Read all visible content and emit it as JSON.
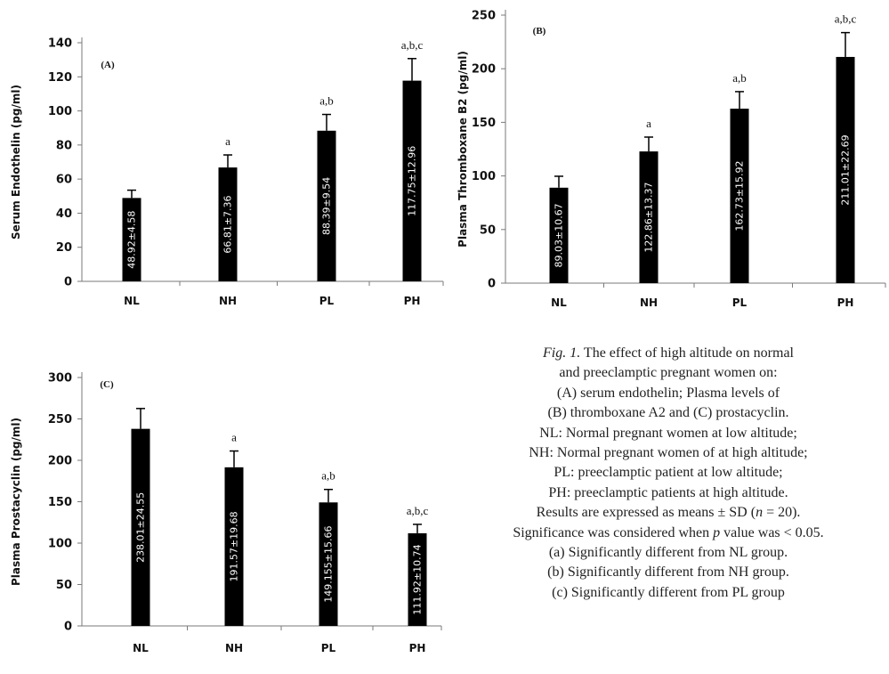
{
  "chart_data": [
    {
      "type": "bar",
      "panel_label": "(A)",
      "ylabel": "Serum Endothelin (pg/ml)",
      "ylim": [
        0,
        140
      ],
      "yticks": [
        0,
        20,
        40,
        60,
        80,
        100,
        120,
        140
      ],
      "categories": [
        "NL",
        "NH",
        "PL",
        "PH"
      ],
      "values": [
        48.92,
        66.81,
        88.39,
        117.75
      ],
      "errors": [
        4.58,
        7.36,
        9.54,
        12.96
      ],
      "value_labels": [
        "48.92±4.58",
        "66.81±7.36",
        "88.39±9.54",
        "117.75±12.96"
      ],
      "significance": [
        "",
        "a",
        "a,b",
        "a,b,c"
      ]
    },
    {
      "type": "bar",
      "panel_label": "(B)",
      "ylabel": "Plasma Thromboxane B2 (pg/ml)",
      "ylim": [
        0,
        250
      ],
      "yticks": [
        0,
        50,
        100,
        150,
        200,
        250
      ],
      "categories": [
        "NL",
        "NH",
        "PL",
        "PH"
      ],
      "values": [
        89.03,
        122.86,
        162.73,
        211.01
      ],
      "errors": [
        10.67,
        13.37,
        15.92,
        22.69
      ],
      "value_labels": [
        "89.03±10.67",
        "122.86±13.37",
        "162.73±15.92",
        "211.01±22.69"
      ],
      "significance": [
        "",
        "a",
        "a,b",
        "a,b,c"
      ]
    },
    {
      "type": "bar",
      "panel_label": "(C)",
      "ylabel": "Plasma Prostacyclin (pg/ml)",
      "ylim": [
        0,
        300
      ],
      "yticks": [
        0,
        50,
        100,
        150,
        200,
        250,
        300
      ],
      "categories": [
        "NL",
        "NH",
        "PL",
        "PH"
      ],
      "values": [
        238.01,
        191.57,
        149.155,
        111.92
      ],
      "errors": [
        24.55,
        19.68,
        15.66,
        10.74
      ],
      "value_labels": [
        "238.01±24.55",
        "191.57±19.68",
        "149.155±15.66",
        "111.92±10.74"
      ],
      "significance": [
        "",
        "a",
        "a,b",
        "a,b,c"
      ]
    }
  ],
  "caption": {
    "fig_label": "Fig. 1.",
    "line1": " The effect of high altitude on normal",
    "line2": "and preeclamptic pregnant women on:",
    "line3": "(A) serum endothelin; Plasma levels of",
    "line4": "(B) thromboxane A2 and (C) prostacyclin.",
    "line5": "NL: Normal pregnant women at low altitude;",
    "line6": "NH: Normal pregnant women of at high altitude;",
    "line7": "PL: preeclamptic patient at low altitude;",
    "line8": "PH: preeclamptic patients at high altitude.",
    "line9_pre": "Results are expressed as means ± SD (",
    "line9_n": "n",
    "line9_post": " = 20).",
    "line10_pre": "Significance was considered when ",
    "line10_p": "p",
    "line10_post": " value was < 0.05.",
    "line11": "(a) Significantly different from NL group.",
    "line12": "(b) Significantly different from NH group.",
    "line13": "(c) Significantly different from PL group"
  },
  "colors": {
    "bar": "#000000",
    "axis": "#7a7a7a",
    "text": "#111111"
  }
}
